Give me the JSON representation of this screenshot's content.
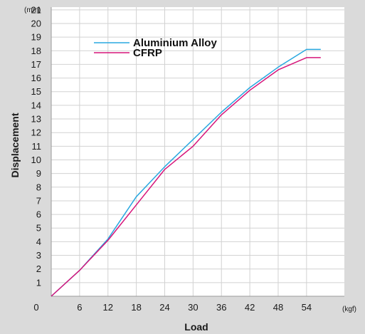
{
  "chart_data": {
    "type": "line",
    "title": "",
    "xlabel": "Load",
    "ylabel": "Displacement",
    "x_unit": "(kgf)",
    "y_unit": "(mm)",
    "origin_label": "0",
    "xticks": [
      6,
      12,
      18,
      24,
      30,
      36,
      42,
      48,
      54
    ],
    "yticks": [
      1,
      2,
      3,
      4,
      5,
      6,
      7,
      8,
      9,
      10,
      11,
      12,
      13,
      14,
      15,
      16,
      17,
      18,
      19,
      20,
      21
    ],
    "xlim": [
      0,
      62
    ],
    "ylim": [
      0,
      21
    ],
    "grid": true,
    "legend_position": "top-left",
    "series": [
      {
        "name": "Aluminium Alloy",
        "color": "#29a8e0",
        "x": [
          0,
          6,
          12,
          18,
          24,
          30,
          36,
          42,
          48,
          54,
          57
        ],
        "y": [
          0,
          1.9,
          4.2,
          7.3,
          9.5,
          11.5,
          13.5,
          15.3,
          16.8,
          18.1,
          18.1
        ]
      },
      {
        "name": "CFRP",
        "color": "#d6157a",
        "x": [
          0,
          6,
          12,
          18,
          24,
          30,
          36,
          42,
          48,
          54,
          57
        ],
        "y": [
          0,
          1.9,
          4.1,
          6.7,
          9.3,
          11.0,
          13.3,
          15.1,
          16.6,
          17.5,
          17.5
        ]
      }
    ]
  }
}
